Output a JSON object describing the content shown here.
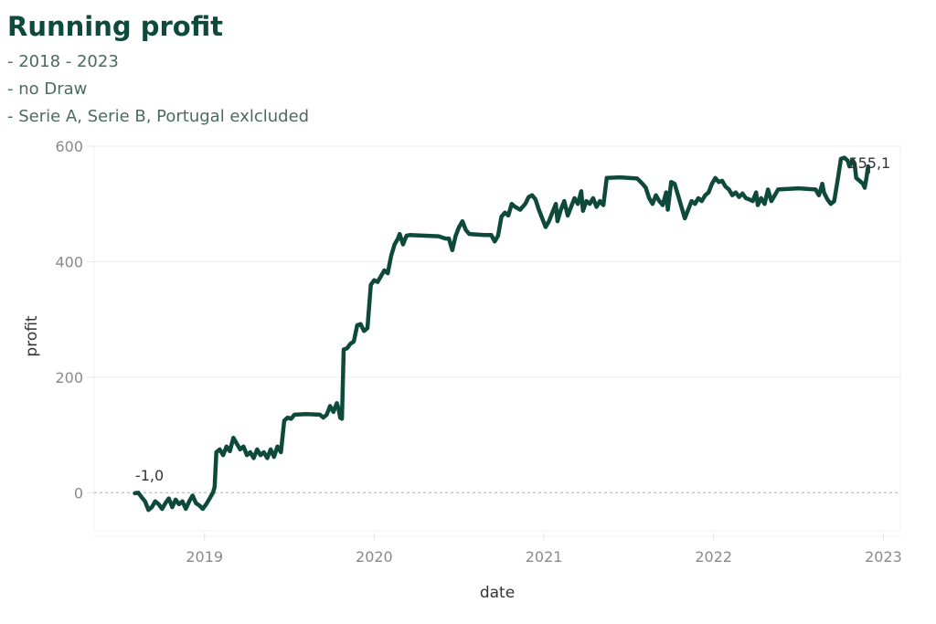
{
  "title": "Running profit",
  "subtitles": [
    "- 2018 - 2023",
    "- no Draw",
    "- Serie A, Serie B, Portugal exlcluded"
  ],
  "colors": {
    "line": "#0e4a3c",
    "title": "#0e4a3c",
    "grid": "#ececec",
    "zero_line": "#b0b0b0"
  },
  "chart_data": {
    "type": "line",
    "title": "Running profit",
    "xlabel": "date",
    "ylabel": "profit",
    "xlim": [
      2018.35,
      2023.1
    ],
    "ylim": [
      -66,
      600
    ],
    "x_ticks": [
      2019,
      2020,
      2021,
      2022,
      2023
    ],
    "x_tick_labels": [
      "2019",
      "2020",
      "2021",
      "2022",
      "2023"
    ],
    "y_ticks": [
      0,
      200,
      400,
      600
    ],
    "y_tick_labels": [
      "0",
      "200",
      "400",
      "600"
    ],
    "grid": true,
    "zero_reference_line": "dashed",
    "annotations": [
      {
        "text": "-1,0",
        "x": 2018.59,
        "y": -1.0,
        "position": "above"
      },
      {
        "text": "555,1",
        "x": 2022.86,
        "y": 555.1,
        "position": "above-right"
      }
    ],
    "series": [
      {
        "name": "profit",
        "points": [
          [
            2018.59,
            -1
          ],
          [
            2018.61,
            0
          ],
          [
            2018.63,
            -8
          ],
          [
            2018.65,
            -15
          ],
          [
            2018.67,
            -30
          ],
          [
            2018.69,
            -25
          ],
          [
            2018.71,
            -15
          ],
          [
            2018.73,
            -20
          ],
          [
            2018.75,
            -28
          ],
          [
            2018.77,
            -18
          ],
          [
            2018.79,
            -10
          ],
          [
            2018.81,
            -25
          ],
          [
            2018.83,
            -12
          ],
          [
            2018.85,
            -20
          ],
          [
            2018.87,
            -15
          ],
          [
            2018.89,
            -28
          ],
          [
            2018.91,
            -15
          ],
          [
            2018.93,
            -5
          ],
          [
            2018.95,
            -18
          ],
          [
            2018.97,
            -22
          ],
          [
            2018.99,
            -28
          ],
          [
            2019.01,
            -20
          ],
          [
            2019.03,
            -10
          ],
          [
            2019.05,
            0
          ],
          [
            2019.06,
            10
          ],
          [
            2019.07,
            70
          ],
          [
            2019.09,
            75
          ],
          [
            2019.11,
            65
          ],
          [
            2019.13,
            80
          ],
          [
            2019.15,
            72
          ],
          [
            2019.17,
            95
          ],
          [
            2019.19,
            85
          ],
          [
            2019.21,
            75
          ],
          [
            2019.23,
            80
          ],
          [
            2019.25,
            65
          ],
          [
            2019.27,
            70
          ],
          [
            2019.29,
            60
          ],
          [
            2019.31,
            75
          ],
          [
            2019.33,
            65
          ],
          [
            2019.35,
            70
          ],
          [
            2019.37,
            60
          ],
          [
            2019.39,
            75
          ],
          [
            2019.41,
            62
          ],
          [
            2019.43,
            80
          ],
          [
            2019.45,
            70
          ],
          [
            2019.47,
            125
          ],
          [
            2019.49,
            130
          ],
          [
            2019.51,
            128
          ],
          [
            2019.53,
            135
          ],
          [
            2019.6,
            136
          ],
          [
            2019.68,
            135
          ],
          [
            2019.7,
            130
          ],
          [
            2019.72,
            135
          ],
          [
            2019.74,
            150
          ],
          [
            2019.76,
            140
          ],
          [
            2019.78,
            155
          ],
          [
            2019.79,
            145
          ],
          [
            2019.8,
            130
          ],
          [
            2019.81,
            128
          ],
          [
            2019.82,
            248
          ],
          [
            2019.84,
            250
          ],
          [
            2019.86,
            258
          ],
          [
            2019.88,
            262
          ],
          [
            2019.9,
            290
          ],
          [
            2019.92,
            292
          ],
          [
            2019.94,
            280
          ],
          [
            2019.96,
            285
          ],
          [
            2019.98,
            360
          ],
          [
            2020.0,
            368
          ],
          [
            2020.02,
            365
          ],
          [
            2020.04,
            375
          ],
          [
            2020.06,
            385
          ],
          [
            2020.08,
            380
          ],
          [
            2020.1,
            410
          ],
          [
            2020.12,
            430
          ],
          [
            2020.14,
            440
          ],
          [
            2020.15,
            448
          ],
          [
            2020.17,
            430
          ],
          [
            2020.19,
            445
          ],
          [
            2020.21,
            446
          ],
          [
            2020.3,
            445
          ],
          [
            2020.38,
            444
          ],
          [
            2020.42,
            440
          ],
          [
            2020.44,
            440
          ],
          [
            2020.46,
            420
          ],
          [
            2020.48,
            445
          ],
          [
            2020.5,
            460
          ],
          [
            2020.52,
            470
          ],
          [
            2020.54,
            455
          ],
          [
            2020.56,
            448
          ],
          [
            2020.65,
            446
          ],
          [
            2020.69,
            446
          ],
          [
            2020.71,
            435
          ],
          [
            2020.73,
            445
          ],
          [
            2020.75,
            478
          ],
          [
            2020.77,
            485
          ],
          [
            2020.79,
            480
          ],
          [
            2020.81,
            500
          ],
          [
            2020.83,
            495
          ],
          [
            2020.86,
            490
          ],
          [
            2020.89,
            500
          ],
          [
            2020.91,
            512
          ],
          [
            2020.93,
            515
          ],
          [
            2020.95,
            508
          ],
          [
            2020.97,
            490
          ],
          [
            2020.99,
            475
          ],
          [
            2021.01,
            460
          ],
          [
            2021.03,
            470
          ],
          [
            2021.05,
            485
          ],
          [
            2021.07,
            500
          ],
          [
            2021.08,
            470
          ],
          [
            2021.1,
            490
          ],
          [
            2021.12,
            505
          ],
          [
            2021.14,
            480
          ],
          [
            2021.16,
            495
          ],
          [
            2021.18,
            510
          ],
          [
            2021.2,
            500
          ],
          [
            2021.22,
            522
          ],
          [
            2021.23,
            488
          ],
          [
            2021.25,
            505
          ],
          [
            2021.27,
            500
          ],
          [
            2021.29,
            510
          ],
          [
            2021.31,
            495
          ],
          [
            2021.33,
            505
          ],
          [
            2021.35,
            498
          ],
          [
            2021.37,
            545
          ],
          [
            2021.45,
            546
          ],
          [
            2021.55,
            544
          ],
          [
            2021.58,
            535
          ],
          [
            2021.6,
            528
          ],
          [
            2021.62,
            510
          ],
          [
            2021.64,
            500
          ],
          [
            2021.66,
            515
          ],
          [
            2021.68,
            505
          ],
          [
            2021.7,
            498
          ],
          [
            2021.72,
            520
          ],
          [
            2021.73,
            490
          ],
          [
            2021.75,
            538
          ],
          [
            2021.77,
            535
          ],
          [
            2021.79,
            515
          ],
          [
            2021.81,
            495
          ],
          [
            2021.83,
            475
          ],
          [
            2021.85,
            490
          ],
          [
            2021.87,
            505
          ],
          [
            2021.89,
            500
          ],
          [
            2021.91,
            510
          ],
          [
            2021.93,
            505
          ],
          [
            2021.95,
            515
          ],
          [
            2021.97,
            520
          ],
          [
            2021.99,
            535
          ],
          [
            2022.01,
            545
          ],
          [
            2022.03,
            538
          ],
          [
            2022.05,
            540
          ],
          [
            2022.07,
            530
          ],
          [
            2022.09,
            525
          ],
          [
            2022.11,
            515
          ],
          [
            2022.13,
            520
          ],
          [
            2022.15,
            512
          ],
          [
            2022.17,
            518
          ],
          [
            2022.19,
            510
          ],
          [
            2022.21,
            508
          ],
          [
            2022.23,
            505
          ],
          [
            2022.25,
            520
          ],
          [
            2022.26,
            498
          ],
          [
            2022.28,
            510
          ],
          [
            2022.3,
            500
          ],
          [
            2022.32,
            525
          ],
          [
            2022.34,
            505
          ],
          [
            2022.36,
            515
          ],
          [
            2022.38,
            525
          ],
          [
            2022.5,
            527
          ],
          [
            2022.6,
            525
          ],
          [
            2022.62,
            515
          ],
          [
            2022.64,
            535
          ],
          [
            2022.65,
            520
          ],
          [
            2022.67,
            508
          ],
          [
            2022.69,
            500
          ],
          [
            2022.71,
            505
          ],
          [
            2022.73,
            540
          ],
          [
            2022.75,
            578
          ],
          [
            2022.77,
            580
          ],
          [
            2022.79,
            575
          ],
          [
            2022.8,
            565
          ],
          [
            2022.82,
            575
          ],
          [
            2022.83,
            570
          ],
          [
            2022.84,
            545
          ],
          [
            2022.86,
            540
          ],
          [
            2022.88,
            535
          ],
          [
            2022.89,
            528
          ],
          [
            2022.9,
            545
          ],
          [
            2022.91,
            565
          ],
          [
            2022.91,
            555
          ]
        ]
      }
    ]
  }
}
